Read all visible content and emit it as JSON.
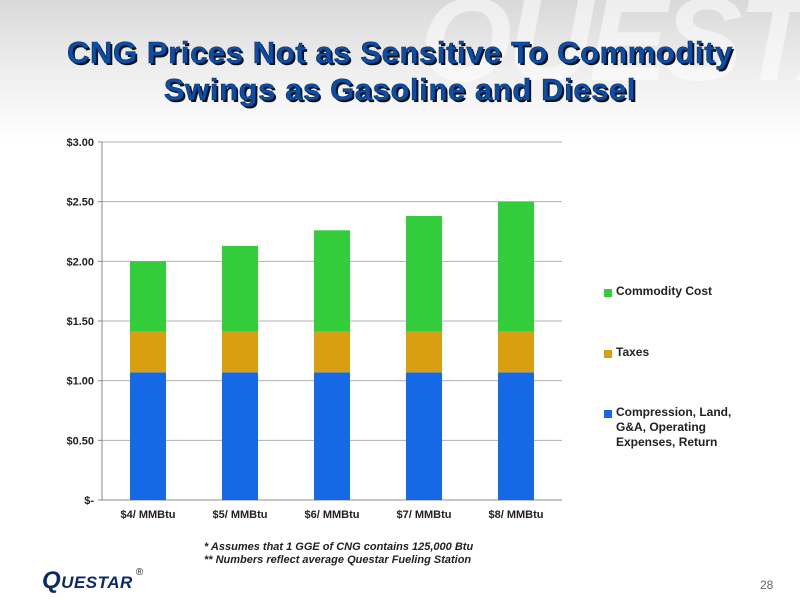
{
  "slide": {
    "watermark": "QUESTAR",
    "title_line1": "CNG Prices Not as Sensitive To Commodity",
    "title_line2": "Swings as Gasoline and Diesel",
    "footnote_line1": "* Assumes  that 1 GGE  of CNG contains 125,000 Btu",
    "footnote_line2": "** Numbers reflect average Questar Fueling Station",
    "logo_first": "Q",
    "logo_rest": "UESTAR",
    "logo_reg": "®",
    "page_number": "28"
  },
  "chart_data": {
    "type": "bar",
    "stacked": true,
    "categories": [
      "$4/ MMBtu",
      "$5/ MMBtu",
      "$6/ MMBtu",
      "$7/ MMBtu",
      "$8/ MMBtu"
    ],
    "series": [
      {
        "name": "Compression, Land, G&A, Operating Expenses, Return",
        "label_lines": [
          "Compression, Land,",
          "G&A, Operating",
          "Expenses, Return"
        ],
        "color": "#1569e6",
        "values": [
          1.07,
          1.07,
          1.07,
          1.07,
          1.07
        ]
      },
      {
        "name": "Taxes",
        "label_lines": [
          "Taxes"
        ],
        "color": "#d8a010",
        "values": [
          0.34,
          0.34,
          0.34,
          0.34,
          0.34
        ]
      },
      {
        "name": "Commodity Cost",
        "label_lines": [
          "Commodity Cost"
        ],
        "color": "#33cc3a",
        "values": [
          0.59,
          0.72,
          0.85,
          0.97,
          1.09
        ]
      }
    ],
    "y_ticks": [
      0,
      0.5,
      1.0,
      1.5,
      2.0,
      2.5,
      3.0
    ],
    "y_tick_labels": [
      "$-",
      "$0.50",
      "$1.00",
      "$1.50",
      "$2.00",
      "$2.50",
      "$3.00"
    ],
    "ylim": [
      0,
      3.0
    ],
    "grid": true,
    "legend_position": "right",
    "axis_color": "#888888",
    "grid_color": "#b0b0b0"
  }
}
